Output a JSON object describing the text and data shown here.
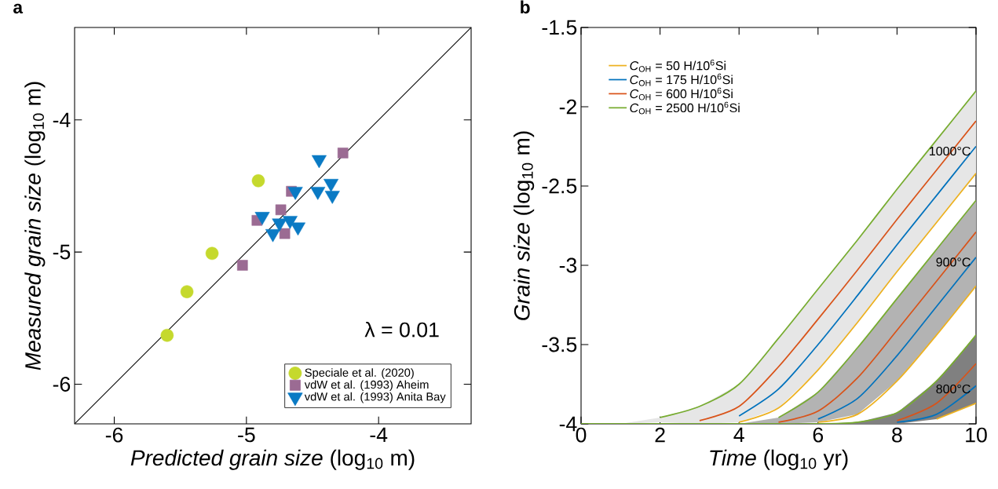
{
  "chart_data": [
    {
      "type": "scatter",
      "title": "a",
      "xlabel": "*Predicted grain size* (log$_{10}$ m)",
      "ylabel": "*Measured grain size* (log$_{10}$ m)",
      "xlim": [
        -6.3,
        -3.3
      ],
      "ylim": [
        -6.3,
        -3.3
      ],
      "xticks": [
        -6,
        -5,
        -4
      ],
      "yticks": [
        -6,
        -5,
        -4
      ],
      "legend": "bottom right",
      "annotations": [
        "λ = 0.01"
      ],
      "series": [
        {
          "type": "line",
          "color": "#000000",
          "marker": "none",
          "x": [
            -6.3,
            -3.3
          ],
          "values": [
            -6.3,
            -3.3
          ]
        },
        {
          "name": "Speciale et al. (2020)",
          "color": "#c5d92d",
          "marker": "circle",
          "x": [
            -4.91,
            -5.26,
            -5.45,
            -5.6
          ],
          "values": [
            -4.46,
            -5.01,
            -5.3,
            -5.63
          ]
        },
        {
          "name": "vdW et al. (1993) Aheim",
          "color": "#9b6b93",
          "marker": "square",
          "x": [
            -4.27,
            -4.66,
            -4.74,
            -4.92,
            -4.71,
            -5.03
          ],
          "values": [
            -4.25,
            -4.54,
            -4.68,
            -4.76,
            -4.86,
            -5.1
          ]
        },
        {
          "name": "vdW et al. (1993) Anita Bay",
          "color": "#0a7ac4",
          "marker": "triangle",
          "x": [
            -4.45,
            -4.36,
            -4.63,
            -4.46,
            -4.35,
            -4.88,
            -4.67,
            -4.75,
            -4.61,
            -4.8
          ],
          "values": [
            -4.3,
            -4.48,
            -4.54,
            -4.54,
            -4.57,
            -4.73,
            -4.76,
            -4.78,
            -4.81,
            -4.86
          ]
        }
      ]
    },
    {
      "type": "line",
      "title": "b",
      "xlabel": "*Time* (log$_{10}$ yr)",
      "ylabel": "*Grain size* (log$_{10}$ m)",
      "xlim": [
        0,
        10
      ],
      "ylim": [
        -4,
        -1.5
      ],
      "xticks": [
        0,
        2,
        4,
        6,
        8,
        10
      ],
      "yticks": [
        -4,
        -3.5,
        -3,
        -2.5,
        -2,
        -1.5
      ],
      "legend": "top left",
      "x": [
        0,
        1,
        2,
        3,
        4,
        5,
        6,
        7,
        8,
        9,
        10
      ],
      "annotations": [
        "1000°C",
        "900°C",
        "800°C"
      ],
      "series": [
        {
          "name": "*C*$_{OH}$ = 50 H/10$^{6}$Si",
          "color": "#edb120",
          "values": [
            null,
            null,
            null,
            null,
            -3.99,
            -3.9,
            -3.66,
            -3.36,
            -3.04,
            -2.73,
            -2.42
          ]
        },
        {
          "name": "*C*$_{OH}$ = 175 H/10$^{6}$Si",
          "color": "#0072bd",
          "values": [
            null,
            null,
            null,
            null,
            -3.95,
            -3.78,
            -3.5,
            -3.19,
            -2.87,
            -2.56,
            -2.25
          ]
        },
        {
          "name": "*C*$_{OH}$ = 600 H/10$^{6}$Si",
          "color": "#d95319",
          "values": [
            null,
            null,
            null,
            -3.98,
            -3.89,
            -3.64,
            -3.34,
            -3.03,
            -2.71,
            -2.4,
            -2.09
          ],
          "lower": [
            -4,
            -4,
            -3.99,
            -4,
            -3.99,
            -3.9,
            -3.66,
            -3.36,
            -3.04,
            -2.73,
            -2.42
          ],
          "upper": [
            -4,
            -4,
            -3.96,
            -3.89,
            -3.75,
            -3.46,
            -3.15,
            -2.84,
            -2.52,
            -2.21,
            -1.9
          ]
        },
        {
          "name": "*C*$_{OH}$ = 2500 H/10$^{6}$Si",
          "color": "#77ac30",
          "values": [
            null,
            null,
            -3.96,
            -3.89,
            -3.75,
            -3.46,
            -3.15,
            -2.84,
            -2.52,
            -2.21,
            -1.9
          ]
        },
        {
          "color": "#edb120",
          "values": [
            null,
            null,
            null,
            null,
            null,
            null,
            -3.99,
            -3.94,
            -3.73,
            -3.44,
            -3.13
          ]
        },
        {
          "color": "#0072bd",
          "values": [
            null,
            null,
            null,
            null,
            null,
            null,
            -3.97,
            -3.84,
            -3.57,
            -3.26,
            -2.95
          ]
        },
        {
          "color": "#d95319",
          "values": [
            null,
            null,
            null,
            null,
            null,
            -3.99,
            -3.92,
            -3.71,
            -3.41,
            -3.1,
            -2.79
          ],
          "lower": [
            -4,
            -4,
            -4,
            -4,
            -4,
            -4,
            -3.99,
            -3.94,
            -3.73,
            -3.44,
            -3.13
          ],
          "upper": [
            -4,
            -4,
            -4,
            -4,
            -4,
            -3.96,
            -3.8,
            -3.52,
            -3.21,
            -2.9,
            -2.59
          ]
        },
        {
          "color": "#77ac30",
          "values": [
            null,
            null,
            null,
            null,
            null,
            -3.96,
            -3.8,
            -3.52,
            -3.21,
            -2.9,
            -2.59
          ]
        },
        {
          "color": "#edb120",
          "values": [
            null,
            null,
            null,
            null,
            null,
            null,
            null,
            null,
            null,
            -3.97,
            -3.87
          ]
        },
        {
          "color": "#0072bd",
          "values": [
            null,
            null,
            null,
            null,
            null,
            null,
            null,
            null,
            -3.99,
            -3.94,
            -3.76
          ]
        },
        {
          "color": "#d95319",
          "values": [
            null,
            null,
            null,
            null,
            null,
            null,
            null,
            null,
            -3.98,
            -3.87,
            -3.62
          ],
          "lower": [
            -4,
            -4,
            -4,
            -4,
            -4,
            -4,
            -4,
            -4,
            -4,
            -3.97,
            -3.87
          ],
          "upper": [
            -4,
            -4,
            -4,
            -4,
            -4,
            -4,
            -4,
            -3.99,
            -3.93,
            -3.73,
            -3.44
          ]
        },
        {
          "color": "#77ac30",
          "values": [
            -4,
            -4,
            -4,
            -4,
            -4,
            -4,
            -4,
            -3.99,
            -3.93,
            -3.73,
            -3.44
          ]
        }
      ]
    }
  ]
}
